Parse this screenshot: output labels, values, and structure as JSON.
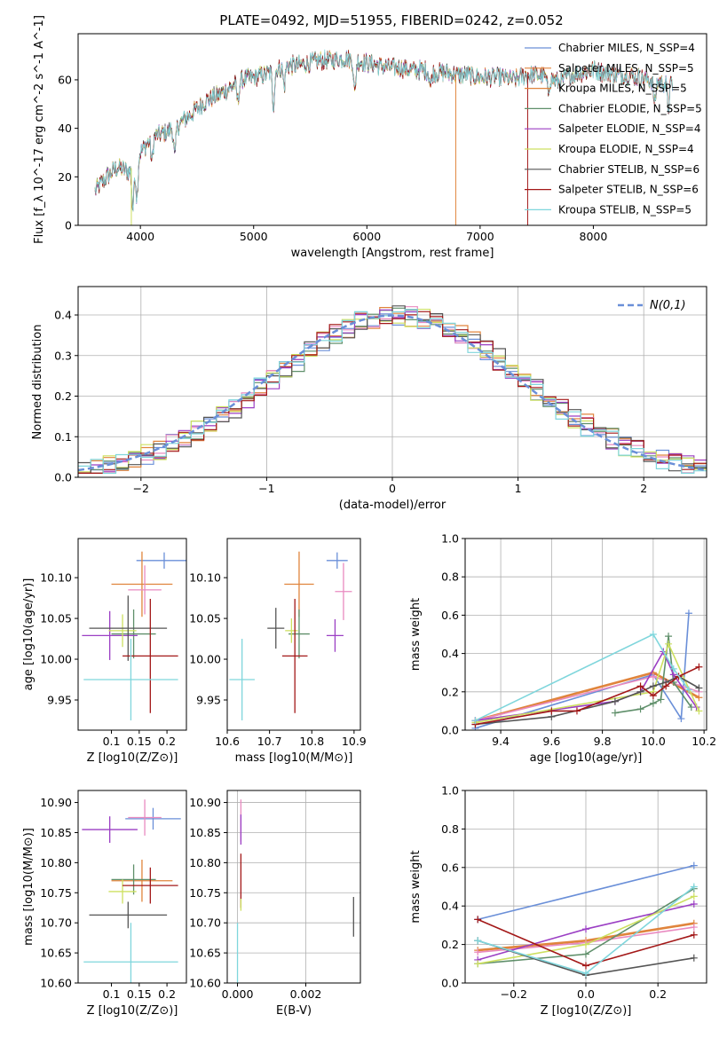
{
  "figure_title": "PLATE=0492, MJD=51955, FIBERID=0242, z=0.052",
  "colors": {
    "blue": "#6a8fd8",
    "orange": "#e0843c",
    "pink": "#e98ac0",
    "green": "#5f8f6a",
    "purple": "#9b3fc4",
    "yellow": "#cde060",
    "gray": "#555555",
    "red": "#a31818",
    "cyan": "#7fd6dc"
  },
  "chart_data": [
    {
      "id": "spectrum",
      "type": "line",
      "title": "PLATE=0492, MJD=51955, FIBERID=0242, z=0.052",
      "xlabel": "wavelength [Angstrom, rest frame]",
      "ylabel": "Flux [f_λ 10^-17 erg cm^-2 s^-1 A^-1]",
      "xlim": [
        3450,
        9000
      ],
      "ylim": [
        0,
        79
      ],
      "xticks": [
        4000,
        5000,
        6000,
        7000,
        8000
      ],
      "yticks": [
        0,
        20,
        40,
        60
      ],
      "grid": false,
      "legend_position": "top-right",
      "legend": [
        {
          "label": "Chabrier MILES, N_SSP=4",
          "color": "blue"
        },
        {
          "label": "Salpeter MILES, N_SSP=5",
          "color": "orange"
        },
        {
          "label": "Kroupa MILES, N_SSP=5",
          "color": "orange"
        },
        {
          "label": "Chabrier ELODIE, N_SSP=5",
          "color": "green"
        },
        {
          "label": "Salpeter ELODIE, N_SSP=4",
          "color": "purple"
        },
        {
          "label": "Kroupa ELODIE, N_SSP=4",
          "color": "yellow"
        },
        {
          "label": "Chabrier STELIB, N_SSP=6",
          "color": "gray"
        },
        {
          "label": "Salpeter STELIB, N_SSP=6",
          "color": "red"
        },
        {
          "label": "Kroupa STELIB, N_SSP=5",
          "color": "cyan"
        }
      ],
      "continuum": [
        [
          3600,
          14
        ],
        [
          3700,
          20
        ],
        [
          3800,
          24
        ],
        [
          3900,
          22
        ],
        [
          4000,
          30
        ],
        [
          4100,
          36
        ],
        [
          4200,
          38
        ],
        [
          4300,
          40
        ],
        [
          4400,
          44
        ],
        [
          4500,
          48
        ],
        [
          4600,
          52
        ],
        [
          4700,
          54
        ],
        [
          4800,
          57
        ],
        [
          4900,
          60
        ],
        [
          5000,
          61
        ],
        [
          5100,
          62
        ],
        [
          5200,
          64
        ],
        [
          5300,
          66
        ],
        [
          5400,
          66
        ],
        [
          5500,
          67
        ],
        [
          5600,
          68
        ],
        [
          5700,
          68
        ],
        [
          5800,
          69
        ],
        [
          5900,
          68
        ],
        [
          6000,
          67
        ],
        [
          6100,
          66
        ],
        [
          6200,
          65
        ],
        [
          6300,
          65
        ],
        [
          6400,
          64
        ],
        [
          6500,
          64
        ],
        [
          6600,
          63
        ],
        [
          6700,
          63
        ],
        [
          6800,
          62
        ],
        [
          6900,
          62
        ],
        [
          7000,
          61
        ],
        [
          7100,
          61
        ],
        [
          7200,
          61
        ],
        [
          7300,
          60
        ],
        [
          7400,
          62
        ],
        [
          7500,
          62
        ],
        [
          7600,
          61
        ],
        [
          7700,
          59
        ],
        [
          7800,
          62
        ],
        [
          7900,
          63
        ],
        [
          8000,
          64
        ],
        [
          8100,
          63
        ],
        [
          8200,
          62
        ],
        [
          8300,
          62
        ],
        [
          8400,
          61
        ],
        [
          8500,
          60
        ],
        [
          8600,
          59
        ],
        [
          8700,
          58
        ]
      ],
      "absorption_features": [
        [
          3934,
          18
        ],
        [
          3969,
          16
        ],
        [
          4102,
          10
        ],
        [
          4304,
          12
        ],
        [
          4861,
          8
        ],
        [
          5175,
          14
        ],
        [
          5270,
          8
        ],
        [
          5893,
          14
        ],
        [
          6563,
          6
        ],
        [
          7600,
          6
        ],
        [
          8542,
          10
        ],
        [
          8662,
          10
        ]
      ],
      "spikes": [
        [
          3920,
          0
        ],
        [
          6785,
          0
        ],
        [
          7420,
          0
        ]
      ]
    },
    {
      "id": "residuals",
      "type": "line",
      "xlabel": "(data-model)/error",
      "ylabel": "Normed distribution",
      "xlim": [
        -2.5,
        2.5
      ],
      "ylim": [
        0,
        0.47
      ],
      "xticks": [
        -2,
        -1,
        0,
        1,
        2
      ],
      "yticks": [
        0.0,
        0.1,
        0.2,
        0.3,
        0.4
      ],
      "grid": true,
      "legend_position": "top-right",
      "legend": [
        {
          "label": "N(0,1)",
          "color": "blue",
          "style": "dashed"
        }
      ],
      "histogram_bin_width": 0.1,
      "histogram_series": [
        "blue",
        "orange",
        "pink",
        "green",
        "purple",
        "yellow",
        "gray",
        "red",
        "cyan"
      ]
    },
    {
      "id": "age-vs-Z",
      "type": "scatter",
      "xlabel": "Z [log10(Z/Z⊙)]",
      "ylabel": "age  [log10(age/yr)]",
      "xlim": [
        0.04,
        0.235
      ],
      "ylim": [
        9.913,
        10.148
      ],
      "xticks": [
        0.1,
        0.15,
        0.2
      ],
      "yticks": [
        9.95,
        10.0,
        10.05,
        10.1
      ],
      "grid": false,
      "points": [
        {
          "color": "blue",
          "x": 0.195,
          "y": 10.121,
          "xerr": 0.05,
          "yerr": 0.01
        },
        {
          "color": "orange",
          "x": 0.155,
          "y": 10.092,
          "xerr": 0.055,
          "yerr": 0.04
        },
        {
          "color": "pink",
          "x": 0.16,
          "y": 10.085,
          "xerr": 0.03,
          "yerr": 0.03
        },
        {
          "color": "green",
          "x": 0.14,
          "y": 10.031,
          "xerr": 0.04,
          "yerr": 0.03
        },
        {
          "color": "purple",
          "x": 0.097,
          "y": 10.029,
          "xerr": 0.05,
          "yerr": 0.03
        },
        {
          "color": "yellow",
          "x": 0.12,
          "y": 10.035,
          "xerr": 0.025,
          "yerr": 0.02
        },
        {
          "color": "gray",
          "x": 0.13,
          "y": 10.038,
          "xerr": 0.07,
          "yerr": 0.04
        },
        {
          "color": "red",
          "x": 0.17,
          "y": 10.004,
          "xerr": 0.05,
          "yerr": 0.07
        },
        {
          "color": "cyan",
          "x": 0.135,
          "y": 9.975,
          "xerr": 0.085,
          "yerr": 0.05
        }
      ]
    },
    {
      "id": "age-vs-mass",
      "type": "scatter",
      "xlabel": "mass [log10(M/M⊙)]",
      "ylabel": "",
      "xlim": [
        10.6,
        10.915
      ],
      "ylim": [
        9.913,
        10.148
      ],
      "xticks": [
        10.6,
        10.7,
        10.8,
        10.9
      ],
      "yticks": [
        9.95,
        10.0,
        10.05,
        10.1
      ],
      "grid": false,
      "points": [
        {
          "color": "blue",
          "x": 10.86,
          "y": 10.121,
          "xerr": 0.025,
          "yerr": 0.01
        },
        {
          "color": "orange",
          "x": 10.77,
          "y": 10.092,
          "xerr": 0.035,
          "yerr": 0.04
        },
        {
          "color": "pink",
          "x": 10.875,
          "y": 10.083,
          "xerr": 0.02,
          "yerr": 0.035
        },
        {
          "color": "green",
          "x": 10.77,
          "y": 10.031,
          "xerr": 0.025,
          "yerr": 0.03
        },
        {
          "color": "purple",
          "x": 10.855,
          "y": 10.029,
          "xerr": 0.02,
          "yerr": 0.02
        },
        {
          "color": "yellow",
          "x": 10.752,
          "y": 10.035,
          "xerr": 0.015,
          "yerr": 0.015
        },
        {
          "color": "gray",
          "x": 10.715,
          "y": 10.038,
          "xerr": 0.02,
          "yerr": 0.025
        },
        {
          "color": "red",
          "x": 10.76,
          "y": 10.004,
          "xerr": 0.03,
          "yerr": 0.07
        },
        {
          "color": "cyan",
          "x": 10.635,
          "y": 9.975,
          "xerr": 0.03,
          "yerr": 0.05
        }
      ]
    },
    {
      "id": "weight-vs-age",
      "type": "line",
      "xlabel": "age  [log10(age/yr)]",
      "ylabel": "mass weight",
      "xlim": [
        9.26,
        10.21
      ],
      "ylim": [
        0,
        1.0
      ],
      "xticks": [
        9.4,
        9.6,
        9.8,
        10.0,
        10.2
      ],
      "yticks": [
        0.0,
        0.2,
        0.4,
        0.6,
        0.8,
        1.0
      ],
      "grid": true,
      "series": [
        {
          "color": "blue",
          "x": [
            9.3,
            10.0,
            10.11,
            10.14
          ],
          "y": [
            0.01,
            0.29,
            0.06,
            0.61
          ]
        },
        {
          "color": "orange",
          "x": [
            9.3,
            10.0,
            10.18
          ],
          "y": [
            0.05,
            0.3,
            0.17
          ]
        },
        {
          "color": "pink",
          "x": [
            9.3,
            10.0,
            10.18
          ],
          "y": [
            0.05,
            0.28,
            0.2
          ]
        },
        {
          "color": "green",
          "x": [
            9.85,
            9.95,
            10.0,
            10.03,
            10.06,
            10.08,
            10.15
          ],
          "y": [
            0.09,
            0.11,
            0.14,
            0.16,
            0.49,
            0.25,
            0.12
          ]
        },
        {
          "color": "purple",
          "x": [
            9.3,
            9.85,
            9.95,
            10.04,
            10.08,
            10.17
          ],
          "y": [
            0.05,
            0.15,
            0.2,
            0.41,
            0.29,
            0.12
          ]
        },
        {
          "color": "yellow",
          "x": [
            9.3,
            10.0,
            10.06,
            10.18
          ],
          "y": [
            0.04,
            0.2,
            0.45,
            0.1
          ]
        },
        {
          "color": "gray",
          "x": [
            9.3,
            9.6,
            9.85,
            9.95,
            10.0,
            10.05,
            10.1,
            10.18
          ],
          "y": [
            0.03,
            0.07,
            0.15,
            0.2,
            0.23,
            0.25,
            0.28,
            0.22
          ]
        },
        {
          "color": "red",
          "x": [
            9.3,
            9.6,
            9.7,
            9.95,
            10.0,
            10.05,
            10.1,
            10.18
          ],
          "y": [
            0.03,
            0.1,
            0.1,
            0.23,
            0.18,
            0.23,
            0.28,
            0.33
          ]
        },
        {
          "color": "cyan",
          "x": [
            9.3,
            10.0,
            10.08,
            10.14
          ],
          "y": [
            0.05,
            0.5,
            0.32,
            0.21
          ]
        }
      ]
    },
    {
      "id": "mass-vs-Z",
      "type": "scatter",
      "xlabel": "Z [log10(Z/Z⊙)]",
      "ylabel": "mass [log10(M/M⊙)]",
      "xlim": [
        0.04,
        0.235
      ],
      "ylim": [
        10.6,
        10.92
      ],
      "xticks": [
        0.1,
        0.15,
        0.2
      ],
      "yticks": [
        10.6,
        10.65,
        10.7,
        10.75,
        10.8,
        10.85,
        10.9
      ],
      "grid": false,
      "points": [
        {
          "color": "blue",
          "x": 0.175,
          "y": 10.873,
          "xerr": 0.05,
          "yerr": 0.018
        },
        {
          "color": "orange",
          "x": 0.155,
          "y": 10.77,
          "xerr": 0.055,
          "yerr": 0.035
        },
        {
          "color": "pink",
          "x": 0.16,
          "y": 10.875,
          "xerr": 0.03,
          "yerr": 0.03
        },
        {
          "color": "green",
          "x": 0.14,
          "y": 10.772,
          "xerr": 0.04,
          "yerr": 0.025
        },
        {
          "color": "purple",
          "x": 0.097,
          "y": 10.855,
          "xerr": 0.05,
          "yerr": 0.022
        },
        {
          "color": "yellow",
          "x": 0.12,
          "y": 10.752,
          "xerr": 0.025,
          "yerr": 0.02
        },
        {
          "color": "gray",
          "x": 0.13,
          "y": 10.713,
          "xerr": 0.07,
          "yerr": 0.022
        },
        {
          "color": "red",
          "x": 0.17,
          "y": 10.762,
          "xerr": 0.05,
          "yerr": 0.03
        },
        {
          "color": "cyan",
          "x": 0.135,
          "y": 10.635,
          "xerr": 0.085,
          "yerr": 0.065
        }
      ]
    },
    {
      "id": "mass-vs-ebv",
      "type": "scatter",
      "xlabel": "E(B-V)",
      "ylabel": "",
      "xlim": [
        -0.0003,
        0.0036
      ],
      "ylim": [
        10.6,
        10.92
      ],
      "xticks": [
        0.0,
        0.002
      ],
      "yticks": [
        10.6,
        10.65,
        10.7,
        10.75,
        10.8,
        10.85,
        10.9
      ],
      "grid": true,
      "points": [
        {
          "color": "pink",
          "x": 0.0001,
          "y": 10.87,
          "yerr": 0.035
        },
        {
          "color": "purple",
          "x": 0.0001,
          "y": 10.855,
          "yerr": 0.025
        },
        {
          "color": "red",
          "x": 0.0001,
          "y": 10.77,
          "yerr": 0.045
        },
        {
          "color": "yellow",
          "x": 0.0001,
          "y": 10.73,
          "yerr": 0.01
        },
        {
          "color": "cyan",
          "x": 0.0,
          "y": 10.64,
          "yerr": 0.06
        },
        {
          "color": "gray",
          "x": 0.0034,
          "y": 10.71,
          "yerr": 0.033
        }
      ]
    },
    {
      "id": "weight-vs-Z",
      "type": "line",
      "xlabel": "Z [log10(Z/Z⊙)]",
      "ylabel": "mass weight",
      "xlim": [
        -0.335,
        0.335
      ],
      "ylim": [
        0,
        1.0
      ],
      "xticks": [
        -0.2,
        0.0,
        0.2
      ],
      "yticks": [
        0.0,
        0.2,
        0.4,
        0.6,
        0.8,
        1.0
      ],
      "grid": true,
      "series": [
        {
          "color": "blue",
          "x": [
            -0.3,
            0.3
          ],
          "y": [
            0.33,
            0.61
          ]
        },
        {
          "color": "orange",
          "x": [
            -0.3,
            0.0,
            0.3
          ],
          "y": [
            0.17,
            0.22,
            0.31
          ]
        },
        {
          "color": "pink",
          "x": [
            -0.3,
            0.0,
            0.3
          ],
          "y": [
            0.16,
            0.21,
            0.29
          ]
        },
        {
          "color": "green",
          "x": [
            -0.3,
            0.0,
            0.3
          ],
          "y": [
            0.1,
            0.15,
            0.49
          ]
        },
        {
          "color": "purple",
          "x": [
            -0.3,
            0.0,
            0.3
          ],
          "y": [
            0.12,
            0.28,
            0.41
          ]
        },
        {
          "color": "yellow",
          "x": [
            -0.3,
            0.0,
            0.3
          ],
          "y": [
            0.1,
            0.2,
            0.45
          ]
        },
        {
          "color": "gray",
          "x": [
            -0.3,
            0.0,
            0.3
          ],
          "y": [
            0.22,
            0.04,
            0.13
          ]
        },
        {
          "color": "red",
          "x": [
            -0.3,
            0.0,
            0.3
          ],
          "y": [
            0.33,
            0.09,
            0.25
          ]
        },
        {
          "color": "cyan",
          "x": [
            -0.3,
            0.0,
            0.3
          ],
          "y": [
            0.22,
            0.05,
            0.5
          ]
        }
      ]
    }
  ]
}
